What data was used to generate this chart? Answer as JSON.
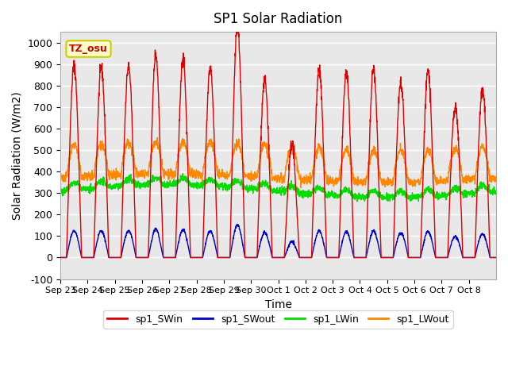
{
  "title": "SP1 Solar Radiation",
  "xlabel": "Time",
  "ylabel": "Solar Radiation (W/m2)",
  "ylim": [
    -100,
    1050
  ],
  "yticks": [
    -100,
    0,
    100,
    200,
    300,
    400,
    500,
    600,
    700,
    800,
    900,
    1000
  ],
  "xtick_labels": [
    "Sep 23",
    "Sep 24",
    "Sep 25",
    "Sep 26",
    "Sep 27",
    "Sep 28",
    "Sep 29",
    "Sep 30",
    "Oct 1",
    "Oct 2",
    "Oct 3",
    "Oct 4",
    "Oct 5",
    "Oct 6",
    "Oct 7",
    "Oct 8"
  ],
  "annotation_text": "TZ_osu",
  "annotation_color": "#cc0000",
  "annotation_bg": "#ffffcc",
  "annotation_border": "#cccc00",
  "bg_color": "#e8e8e8",
  "grid_color": "white",
  "line_colors": {
    "sp1_SWin": "#dd0000",
    "sp1_SWout": "#0000cc",
    "sp1_LWin": "#00dd00",
    "sp1_LWout": "#ff8800"
  },
  "legend_labels": [
    "sp1_SWin",
    "sp1_SWout",
    "sp1_LWin",
    "sp1_LWout"
  ],
  "num_days": 16,
  "swi_peaks": [
    830,
    820,
    840,
    830,
    825,
    800,
    975,
    770,
    460,
    795,
    775,
    775,
    780,
    775,
    680,
    740
  ]
}
